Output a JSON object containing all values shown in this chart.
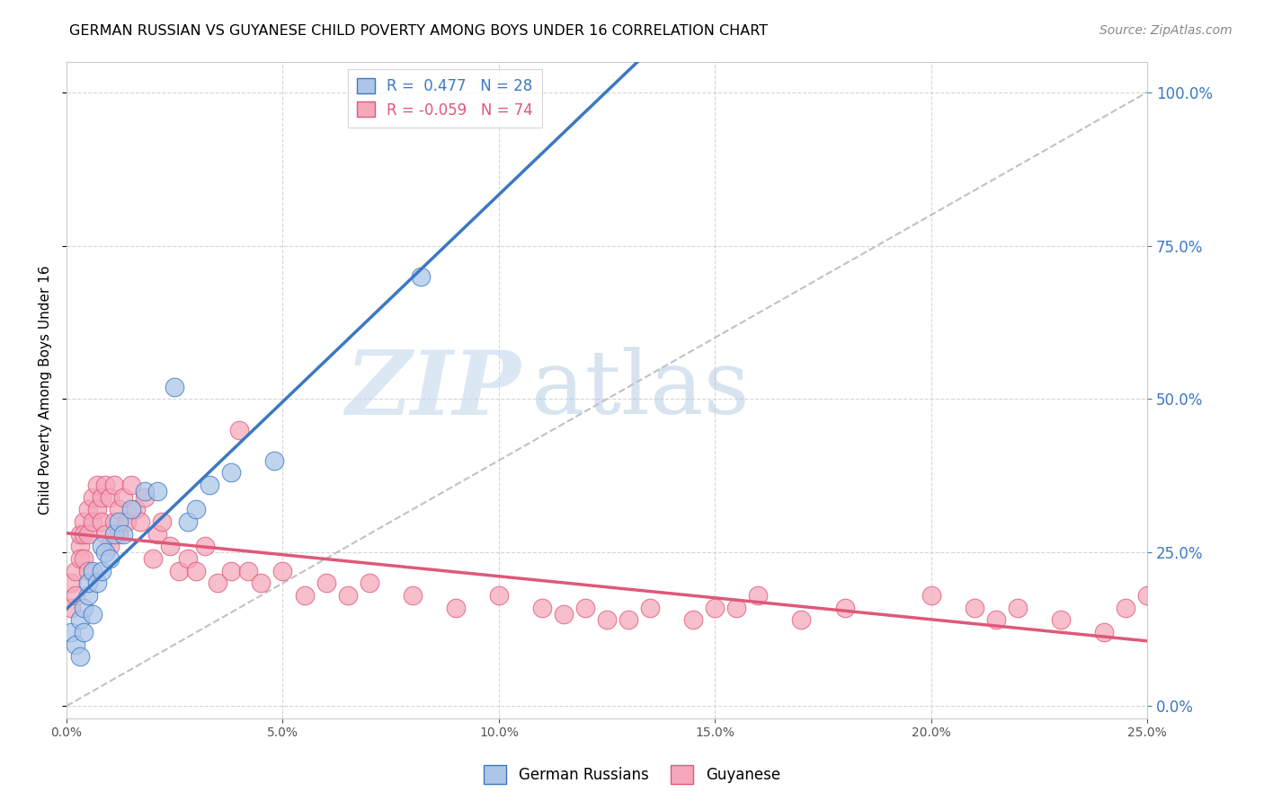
{
  "title": "GERMAN RUSSIAN VS GUYANESE CHILD POVERTY AMONG BOYS UNDER 16 CORRELATION CHART",
  "source": "Source: ZipAtlas.com",
  "ylabel": "Child Poverty Among Boys Under 16",
  "xlim": [
    0.0,
    0.25
  ],
  "ylim": [
    -0.02,
    1.05
  ],
  "xticks": [
    0.0,
    0.05,
    0.1,
    0.15,
    0.2,
    0.25
  ],
  "yticks_right": [
    0.0,
    0.25,
    0.5,
    0.75,
    1.0
  ],
  "legend_r1": "R =  0.477   N = 28",
  "legend_r2": "R = -0.059   N = 74",
  "blue_color": "#adc6e8",
  "pink_color": "#f5a8bc",
  "blue_line_color": "#3b78c3",
  "pink_line_color": "#e05878",
  "watermark_zip": "ZIP",
  "watermark_atlas": "atlas",
  "gr_R": 0.477,
  "gu_R": -0.059,
  "german_russian_x": [
    0.001,
    0.002,
    0.003,
    0.003,
    0.004,
    0.004,
    0.005,
    0.005,
    0.006,
    0.006,
    0.007,
    0.008,
    0.008,
    0.009,
    0.01,
    0.011,
    0.012,
    0.013,
    0.015,
    0.018,
    0.021,
    0.025,
    0.028,
    0.03,
    0.033,
    0.038,
    0.048,
    0.082
  ],
  "german_russian_y": [
    0.12,
    0.1,
    0.08,
    0.14,
    0.16,
    0.12,
    0.18,
    0.2,
    0.15,
    0.22,
    0.2,
    0.22,
    0.26,
    0.25,
    0.24,
    0.28,
    0.3,
    0.28,
    0.32,
    0.35,
    0.35,
    0.52,
    0.3,
    0.32,
    0.36,
    0.38,
    0.4,
    0.7
  ],
  "guyanese_x": [
    0.001,
    0.001,
    0.002,
    0.002,
    0.003,
    0.003,
    0.003,
    0.004,
    0.004,
    0.004,
    0.005,
    0.005,
    0.005,
    0.006,
    0.006,
    0.007,
    0.007,
    0.008,
    0.008,
    0.009,
    0.009,
    0.01,
    0.01,
    0.011,
    0.011,
    0.012,
    0.012,
    0.013,
    0.014,
    0.015,
    0.016,
    0.017,
    0.018,
    0.02,
    0.021,
    0.022,
    0.024,
    0.026,
    0.028,
    0.03,
    0.032,
    0.035,
    0.038,
    0.04,
    0.042,
    0.045,
    0.05,
    0.055,
    0.06,
    0.065,
    0.07,
    0.08,
    0.09,
    0.1,
    0.11,
    0.13,
    0.15,
    0.16,
    0.17,
    0.18,
    0.2,
    0.21,
    0.215,
    0.22,
    0.23,
    0.24,
    0.245,
    0.25,
    0.115,
    0.12,
    0.125,
    0.135,
    0.145,
    0.155
  ],
  "guyanese_y": [
    0.2,
    0.16,
    0.22,
    0.18,
    0.26,
    0.28,
    0.24,
    0.3,
    0.28,
    0.24,
    0.32,
    0.28,
    0.22,
    0.34,
    0.3,
    0.36,
    0.32,
    0.34,
    0.3,
    0.36,
    0.28,
    0.34,
    0.26,
    0.36,
    0.3,
    0.32,
    0.28,
    0.34,
    0.3,
    0.36,
    0.32,
    0.3,
    0.34,
    0.24,
    0.28,
    0.3,
    0.26,
    0.22,
    0.24,
    0.22,
    0.26,
    0.2,
    0.22,
    0.45,
    0.22,
    0.2,
    0.22,
    0.18,
    0.2,
    0.18,
    0.2,
    0.18,
    0.16,
    0.18,
    0.16,
    0.14,
    0.16,
    0.18,
    0.14,
    0.16,
    0.18,
    0.16,
    0.14,
    0.16,
    0.14,
    0.12,
    0.16,
    0.18,
    0.15,
    0.16,
    0.14,
    0.16,
    0.14,
    0.16
  ]
}
